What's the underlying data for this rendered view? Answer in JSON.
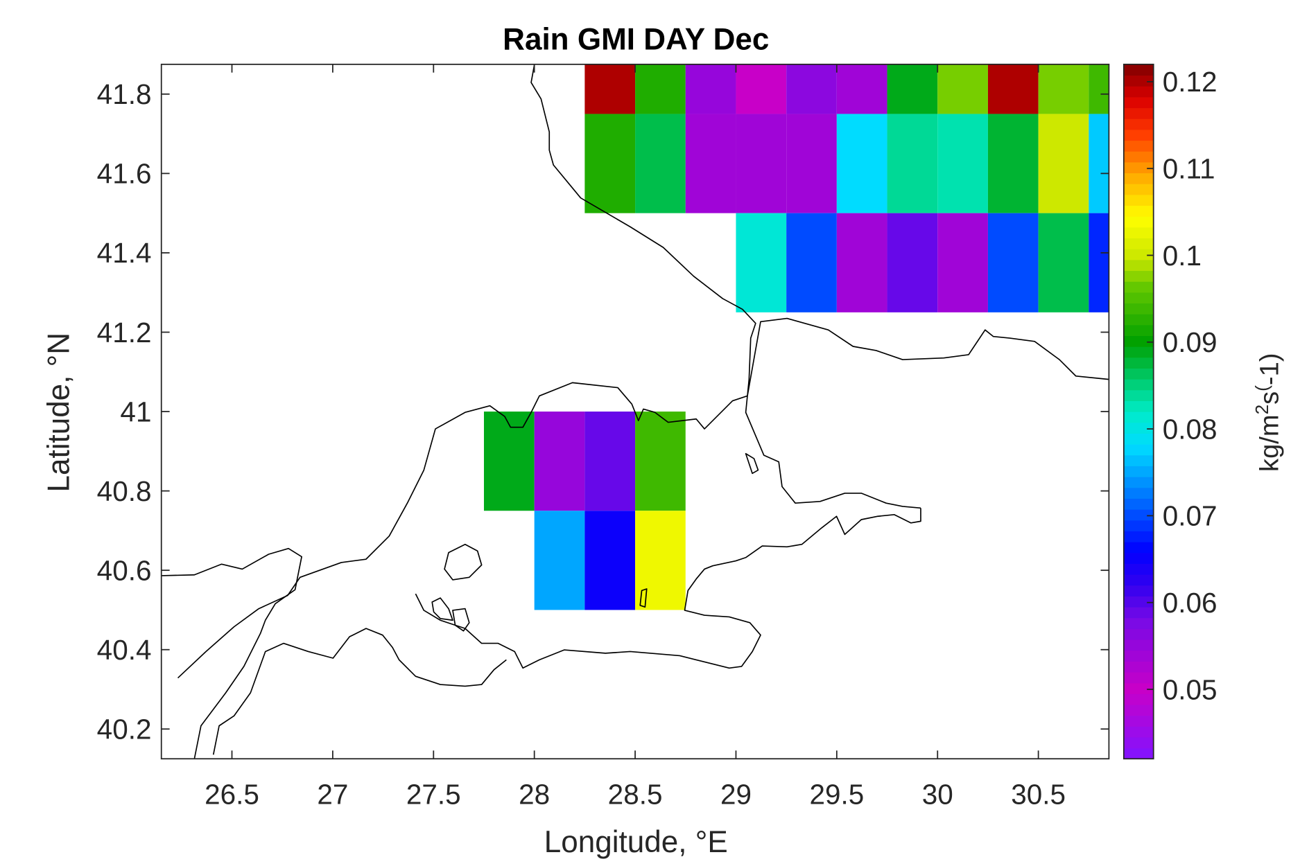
{
  "title": "Rain GMI DAY Dec",
  "xlabel": "Longitude, °E",
  "ylabel": "Latitude, °N",
  "colorbar_label": "kg/m^2s^(-1)",
  "colormap": "jet-like (purple–blue–cyan–green–yellow–red–dark red)",
  "chart_data": {
    "type": "heatmap",
    "title": "Rain GMI DAY Dec",
    "xlabel": "Longitude, °E",
    "ylabel": "Latitude, °N",
    "xlim": [
      26.15,
      30.85
    ],
    "ylim": [
      40.125,
      41.875
    ],
    "xticks": [
      26.5,
      27,
      27.5,
      28,
      28.5,
      29,
      29.5,
      30,
      30.5
    ],
    "yticks": [
      40.2,
      40.4,
      40.6,
      40.8,
      41,
      41.2,
      41.4,
      41.6,
      41.8
    ],
    "xtick_labels": [
      "26.5",
      "27",
      "27.5",
      "28",
      "28.5",
      "29",
      "29.5",
      "30",
      "30.5"
    ],
    "ytick_labels": [
      "40.2",
      "40.4",
      "40.6",
      "40.8",
      "41",
      "41.2",
      "41.4",
      "41.6",
      "41.8"
    ],
    "grid": false,
    "cell_size_deg": 0.25,
    "colorbar": {
      "label": "kg/m^2s^(-1)",
      "clim": [
        0.042,
        0.122
      ],
      "ticks": [
        0.05,
        0.06,
        0.07,
        0.08,
        0.09,
        0.1,
        0.11,
        0.12
      ],
      "tick_labels": [
        "0.05",
        "0.06",
        "0.07",
        "0.08",
        "0.09",
        "0.1",
        "0.11",
        "0.12"
      ]
    },
    "rows": [
      {
        "lat_center": 41.875,
        "lon_start": 28.375,
        "values": [
          0.12,
          0.092,
          0.055,
          0.05,
          0.056,
          0.054,
          0.089,
          0.097,
          0.12,
          0.097,
          0.094
        ]
      },
      {
        "lat_center": 41.625,
        "lon_start": 28.375,
        "values": [
          0.092,
          0.087,
          0.054,
          0.054,
          0.054,
          0.078,
          0.084,
          0.083,
          0.088,
          0.1,
          0.077
        ]
      },
      {
        "lat_center": 41.375,
        "lon_start": 29.125,
        "values": [
          0.081,
          0.07,
          0.054,
          0.059,
          0.054,
          0.07,
          0.087,
          0.068
        ]
      },
      {
        "lat_center": 40.875,
        "lon_start": 27.875,
        "values": [
          0.089,
          0.055,
          0.059,
          0.094
        ]
      },
      {
        "lat_center": 40.625,
        "lon_start": 28.125,
        "values": [
          0.075,
          0.065,
          0.103
        ]
      }
    ]
  }
}
